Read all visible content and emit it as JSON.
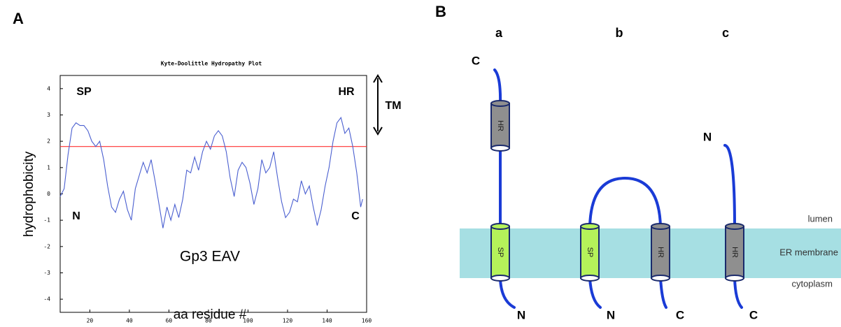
{
  "panels": [
    "A",
    "B"
  ],
  "chart_data": {
    "type": "line",
    "title": "Kyte-Doolittle Hydropathy Plot",
    "x_label": "aa residue #",
    "y_label": "hydrophobicity",
    "x": [
      5,
      7,
      9,
      11,
      13,
      15,
      17,
      19,
      21,
      23,
      25,
      27,
      29,
      31,
      33,
      35,
      37,
      39,
      41,
      43,
      45,
      47,
      49,
      51,
      53,
      55,
      57,
      59,
      61,
      63,
      65,
      67,
      69,
      71,
      73,
      75,
      77,
      79,
      81,
      83,
      85,
      87,
      89,
      91,
      93,
      95,
      97,
      99,
      101,
      103,
      105,
      107,
      109,
      111,
      113,
      115,
      117,
      119,
      121,
      123,
      125,
      127,
      129,
      131,
      133,
      135,
      137,
      139,
      141,
      143,
      145,
      147,
      149,
      151,
      153,
      155,
      157,
      158
    ],
    "series": [
      {
        "color": "#4a5fd0",
        "values": [
          -0.1,
          0.2,
          1.5,
          2.5,
          2.7,
          2.6,
          2.6,
          2.4,
          2.0,
          1.8,
          2.0,
          1.3,
          0.3,
          -0.5,
          -0.7,
          -0.2,
          0.1,
          -0.6,
          -1.0,
          0.2,
          0.7,
          1.2,
          0.8,
          1.3,
          0.5,
          -0.4,
          -1.3,
          -0.5,
          -1.0,
          -0.4,
          -0.9,
          -0.2,
          0.9,
          0.8,
          1.4,
          0.9,
          1.6,
          2.0,
          1.7,
          2.2,
          2.4,
          2.2,
          1.6,
          0.6,
          -0.1,
          0.9,
          1.2,
          1.0,
          0.4,
          -0.4,
          0.2,
          1.3,
          0.8,
          1.0,
          1.6,
          0.6,
          -0.3,
          -0.9,
          -0.7,
          -0.2,
          -0.3,
          0.5,
          0.0,
          0.3,
          -0.5,
          -1.2,
          -0.6,
          0.3,
          1.0,
          2.0,
          2.7,
          2.9,
          2.3,
          2.5,
          1.8,
          0.8,
          -0.5,
          -0.2
        ]
      }
    ],
    "threshold": {
      "value": 1.8,
      "color": "#ff3030"
    },
    "xlim": [
      5,
      160
    ],
    "ylim": [
      -4.5,
      4.5
    ],
    "xticks": [
      20,
      40,
      60,
      80,
      100,
      120,
      140,
      160
    ],
    "yticks": [
      -4,
      -3,
      -2,
      -1,
      0,
      1,
      2,
      3,
      4
    ],
    "annotations": [
      "SP",
      "HR",
      "N",
      "C",
      "TM",
      "Gp3 EAV"
    ]
  },
  "diagram": {
    "layers": {
      "lumen": "lumen",
      "membrane": "ER membrane",
      "cytoplasm": "cytoplasm"
    },
    "columns": [
      {
        "label": "a",
        "top_end": "C",
        "domains": [
          "HR",
          "SP"
        ],
        "bottom_ends": [
          "N"
        ]
      },
      {
        "label": "b",
        "domains": [
          "SP",
          "HR"
        ],
        "bottom_ends": [
          "N",
          "C"
        ]
      },
      {
        "label": "c",
        "top_end": "N",
        "domains": [
          "HR"
        ],
        "bottom_ends": [
          "C"
        ]
      }
    ]
  }
}
